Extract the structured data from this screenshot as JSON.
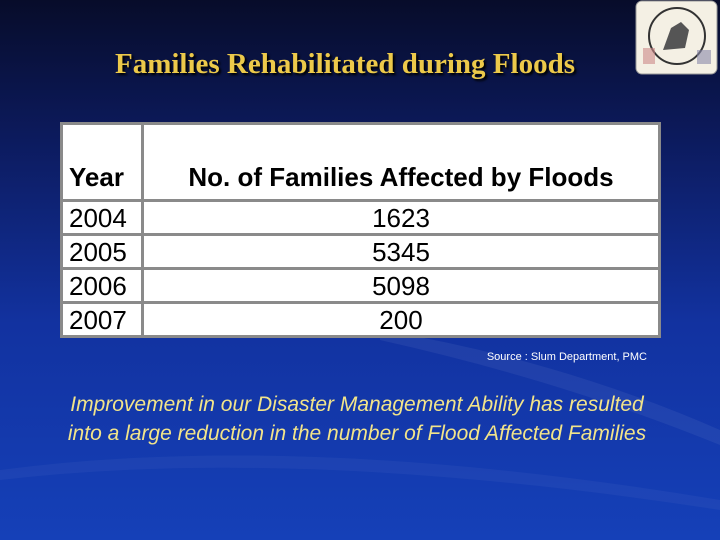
{
  "header": {
    "title": "Families Rehabilitated during Floods"
  },
  "table": {
    "columns": [
      "Year",
      "No. of Families Affected by Floods"
    ],
    "rows": [
      [
        "2004",
        "1623"
      ],
      [
        "2005",
        "5345"
      ],
      [
        "2006",
        "5098"
      ],
      [
        "2007",
        "200"
      ]
    ]
  },
  "source": "Source : Slum Department, PMC",
  "conclusion": [
    "Improvement in our Disaster Management Ability has resulted",
    "into a large reduction in the number of Flood Affected Families"
  ]
}
